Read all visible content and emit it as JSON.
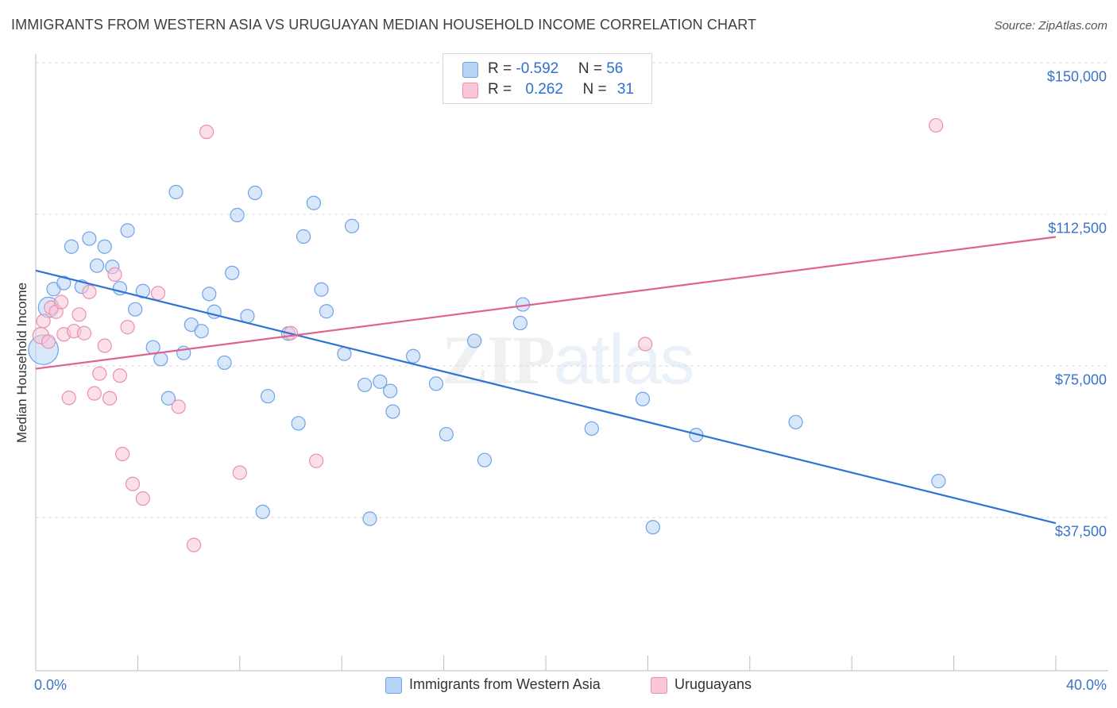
{
  "title": "IMMIGRANTS FROM WESTERN ASIA VS URUGUAYAN MEDIAN HOUSEHOLD INCOME CORRELATION CHART",
  "source": "Source: ZipAtlas.com",
  "watermark": {
    "zip": "ZIP",
    "atlas": "atlas"
  },
  "legend_top": {
    "rows": [
      {
        "r_label": "R = ",
        "r_value": "-0.592",
        "n_label": "N = ",
        "n_value": "56"
      },
      {
        "r_label": "R = ",
        "r_value": "0.262",
        "n_label": "N = ",
        "n_value": "31"
      }
    ]
  },
  "chart_data": {
    "type": "scatter",
    "title": "IMMIGRANTS FROM WESTERN ASIA VS URUGUAYAN MEDIAN HOUSEHOLD INCOME CORRELATION CHART",
    "xlabel": "",
    "ylabel": "Median Household Income",
    "xlim": [
      0,
      40
    ],
    "ylim": [
      0,
      157000
    ],
    "x_unit": "%",
    "x_ticks_labeled": [
      "0.0%",
      "40.0%"
    ],
    "y_ticks": [
      37500,
      75000,
      112500,
      150000
    ],
    "y_tick_labels": [
      "$37,500",
      "$75,000",
      "$112,500",
      "$150,000"
    ],
    "grid": "horizontal dashed",
    "legend_placement": "bottom",
    "series": [
      {
        "name": "Immigrants from Western Asia",
        "color": "#6ea3e8",
        "fill": "#b9d3f5",
        "stats": {
          "R": -0.592,
          "N": 56
        },
        "trend": {
          "x": [
            0,
            40
          ],
          "y": [
            98600,
            36100
          ]
        },
        "points": [
          [
            0.3,
            79000,
            2.2
          ],
          [
            0.5,
            89500,
            1.5
          ],
          [
            0.7,
            94000,
            1
          ],
          [
            1.1,
            95500,
            1
          ],
          [
            1.4,
            104500,
            1
          ],
          [
            1.8,
            94600,
            1
          ],
          [
            2.1,
            106500,
            1
          ],
          [
            2.4,
            99800,
            1
          ],
          [
            2.7,
            104500,
            1
          ],
          [
            3.0,
            99500,
            1
          ],
          [
            3.3,
            94200,
            1
          ],
          [
            3.6,
            108500,
            1
          ],
          [
            3.9,
            89000,
            1
          ],
          [
            4.2,
            93500,
            1
          ],
          [
            4.6,
            79600,
            1
          ],
          [
            4.9,
            76700,
            1
          ],
          [
            5.2,
            67000,
            1
          ],
          [
            5.5,
            118000,
            1
          ],
          [
            5.8,
            78200,
            1
          ],
          [
            6.1,
            85200,
            1
          ],
          [
            6.5,
            83600,
            1
          ],
          [
            6.8,
            92800,
            1
          ],
          [
            7.0,
            88400,
            1
          ],
          [
            7.4,
            75800,
            1
          ],
          [
            7.7,
            98000,
            1
          ],
          [
            7.9,
            112300,
            1
          ],
          [
            8.3,
            87300,
            1
          ],
          [
            8.6,
            117800,
            1
          ],
          [
            8.9,
            38900,
            1
          ],
          [
            9.1,
            67500,
            1
          ],
          [
            9.9,
            83000,
            1
          ],
          [
            10.3,
            60800,
            1
          ],
          [
            10.5,
            107000,
            1
          ],
          [
            10.9,
            115300,
            1
          ],
          [
            11.2,
            93900,
            1
          ],
          [
            11.4,
            88500,
            1
          ],
          [
            12.1,
            78000,
            1
          ],
          [
            12.4,
            109600,
            1
          ],
          [
            12.9,
            70300,
            1
          ],
          [
            13.1,
            37200,
            1
          ],
          [
            13.5,
            71100,
            1
          ],
          [
            13.9,
            68800,
            1
          ],
          [
            14.0,
            63700,
            1
          ],
          [
            14.8,
            77400,
            1
          ],
          [
            15.7,
            70600,
            1
          ],
          [
            16.1,
            58100,
            1
          ],
          [
            17.2,
            81200,
            1
          ],
          [
            17.6,
            51700,
            1
          ],
          [
            19.0,
            85600,
            1
          ],
          [
            19.1,
            90200,
            1
          ],
          [
            21.8,
            59500,
            1
          ],
          [
            23.8,
            66800,
            1
          ],
          [
            24.2,
            35100,
            1
          ],
          [
            25.9,
            57900,
            1
          ],
          [
            29.8,
            61100,
            1
          ],
          [
            35.4,
            46500,
            1
          ]
        ]
      },
      {
        "name": "Uruguayans",
        "color": "#ec8fae",
        "fill": "#f8c6d6",
        "stats": {
          "R": 0.262,
          "N": 31
        },
        "trend": {
          "x": [
            0,
            40
          ],
          "y": [
            74300,
            106900
          ]
        },
        "points": [
          [
            0.2,
            82500,
            1.2
          ],
          [
            0.3,
            86100,
            1
          ],
          [
            0.5,
            81000,
            1
          ],
          [
            0.6,
            89400,
            1
          ],
          [
            0.8,
            88400,
            1
          ],
          [
            1.0,
            90800,
            1
          ],
          [
            1.1,
            82800,
            1
          ],
          [
            1.3,
            67100,
            1
          ],
          [
            1.5,
            83600,
            1
          ],
          [
            1.7,
            87700,
            1
          ],
          [
            1.9,
            83100,
            1
          ],
          [
            2.1,
            93300,
            1
          ],
          [
            2.3,
            68200,
            1
          ],
          [
            2.5,
            73100,
            1
          ],
          [
            2.7,
            80000,
            1
          ],
          [
            2.9,
            67000,
            1
          ],
          [
            3.1,
            97600,
            1
          ],
          [
            3.3,
            72600,
            1
          ],
          [
            3.4,
            53200,
            1
          ],
          [
            3.6,
            84600,
            1
          ],
          [
            3.8,
            45800,
            1
          ],
          [
            4.2,
            42200,
            1
          ],
          [
            4.8,
            93000,
            1
          ],
          [
            5.6,
            64900,
            1
          ],
          [
            6.2,
            30700,
            1
          ],
          [
            6.7,
            132900,
            1
          ],
          [
            8.0,
            48600,
            1
          ],
          [
            10.0,
            83100,
            1
          ],
          [
            11.0,
            51500,
            1
          ],
          [
            23.9,
            80400,
            1
          ],
          [
            35.3,
            134500,
            1
          ]
        ]
      }
    ]
  }
}
